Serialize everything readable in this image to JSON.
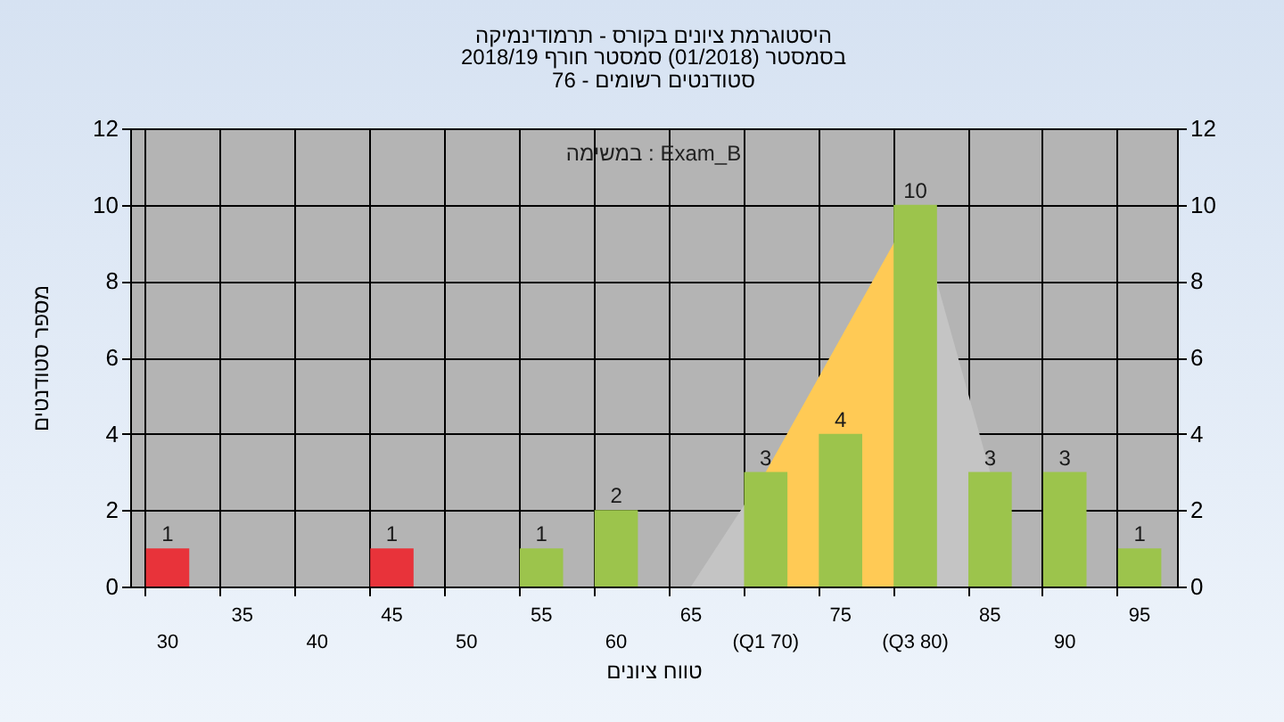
{
  "chart_data": {
    "type": "bar",
    "title": "היסטוגרמת ציונים בקורס - תרמודינמיקה",
    "subtitle": "בסמסטר (01/2018) סמסטר חורף 2018/19\nסטודנטים רשומים - 76",
    "xlabel": "טווח ציונים",
    "ylabel": "מספר סטודנטים",
    "annotations": [
      "במשימה : Exam_B"
    ],
    "categories": [
      "30",
      "35",
      "40",
      "45",
      "50",
      "55",
      "60",
      "65",
      "(Q1 70)",
      "75",
      "(Q3 80)",
      "85",
      "90",
      "95"
    ],
    "series": [
      {
        "type": "area",
        "color": "#c4c4c4",
        "values": [
          null,
          null,
          null,
          null,
          null,
          null,
          null,
          0,
          3,
          null,
          null,
          null,
          null,
          null
        ]
      },
      {
        "type": "area",
        "color": "#c4c4c4",
        "values": [
          null,
          null,
          null,
          null,
          null,
          null,
          null,
          null,
          null,
          null,
          10,
          3,
          null,
          null
        ]
      },
      {
        "type": "area",
        "color": "#ffca55",
        "values": [
          null,
          null,
          null,
          null,
          null,
          null,
          null,
          null,
          3,
          6.5,
          10,
          null,
          null,
          null
        ]
      },
      {
        "colors": [
          "#e8333a",
          "#9cc44c",
          "#9cc44c",
          "#e8333a",
          "#9cc44c",
          "#9cc44c",
          "#9cc44c",
          "#9cc44c",
          "#9cc44c",
          "#9cc44c",
          "#9cc44c",
          "#9cc44c",
          "#9cc44c",
          "#9cc44c"
        ],
        "values": [
          1,
          null,
          null,
          1,
          null,
          1,
          2,
          null,
          3,
          4,
          10,
          3,
          3,
          1
        ],
        "value_labels": [
          "1",
          null,
          null,
          "1",
          null,
          "1",
          "2",
          null,
          "3",
          "4",
          "10",
          "3",
          "3",
          "1"
        ]
      }
    ],
    "ylim": [
      0,
      12
    ],
    "yticks": [
      0,
      2,
      4,
      6,
      8,
      10,
      12
    ],
    "y2lim": [
      0,
      12
    ],
    "y2ticks": [
      0,
      2,
      4,
      6,
      8,
      10,
      12
    ],
    "grid": true,
    "legend": false
  }
}
